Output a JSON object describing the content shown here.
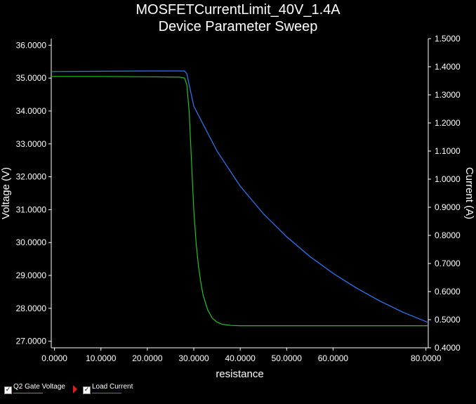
{
  "title": {
    "line1": "MOSFETCurrentLimit_40V_1.4A",
    "line2": "Device Parameter Sweep"
  },
  "chart_data": {
    "type": "line",
    "xlabel": "resistance",
    "ylabel_left": "Voltage (V)",
    "ylabel_right": "Current (A)",
    "xlim": [
      -0.7,
      80.5
    ],
    "ylim_left": [
      26.8,
      36.2
    ],
    "ylim_right": [
      0.4,
      1.5
    ],
    "x_ticks": [
      "0.0000",
      "10.0000",
      "20.0000",
      "30.0000",
      "40.0000",
      "50.0000",
      "60.0000",
      "80.0000"
    ],
    "x_tick_values": [
      0,
      10,
      20,
      30,
      40,
      50,
      60,
      80
    ],
    "y_left_ticks": [
      "36.0000",
      "35.0000",
      "34.0000",
      "33.0000",
      "32.0000",
      "31.0000",
      "30.0000",
      "29.0000",
      "28.0000",
      "27.0000"
    ],
    "y_left_tick_values": [
      36,
      35,
      34,
      33,
      32,
      31,
      30,
      29,
      28,
      27
    ],
    "y_right_ticks": [
      "1.5000",
      "1.4000",
      "1.3000",
      "1.2000",
      "1.1000",
      "1.0000",
      "0.9000",
      "0.8000",
      "0.7000",
      "0.6000",
      "0.5000",
      "0.4000"
    ],
    "y_right_tick_values": [
      1.5,
      1.4,
      1.3,
      1.2,
      1.1,
      1.0,
      0.9,
      0.8,
      0.7,
      0.6,
      0.5,
      0.4
    ],
    "series": [
      {
        "name": "Q2 Gate Voltage",
        "axis": "left",
        "color": "#1fc41f",
        "x": [
          -0.7,
          10,
          20,
          27,
          28,
          28.5,
          29,
          29.5,
          30,
          30.5,
          31,
          31.5,
          32,
          33,
          34,
          35,
          36,
          38,
          40,
          50,
          60,
          70,
          80.5
        ],
        "y": [
          35.05,
          35.05,
          35.04,
          35.03,
          35.0,
          34.8,
          34.0,
          32.5,
          31.0,
          30.0,
          29.3,
          28.8,
          28.4,
          27.95,
          27.7,
          27.58,
          27.52,
          27.48,
          27.47,
          27.47,
          27.47,
          27.47,
          27.47
        ]
      },
      {
        "name": "Load Current",
        "axis": "right",
        "color": "#2a7bff",
        "x": [
          -0.7,
          10,
          20,
          28,
          28.5,
          30,
          35,
          40,
          45,
          50,
          55,
          60,
          65,
          70,
          75,
          80.5
        ],
        "y": [
          1.383,
          1.384,
          1.385,
          1.385,
          1.375,
          1.26,
          1.1,
          0.975,
          0.877,
          0.795,
          0.725,
          0.665,
          0.613,
          0.567,
          0.527,
          0.49
        ]
      }
    ],
    "legend": "bottom-left",
    "grid": false
  }
}
